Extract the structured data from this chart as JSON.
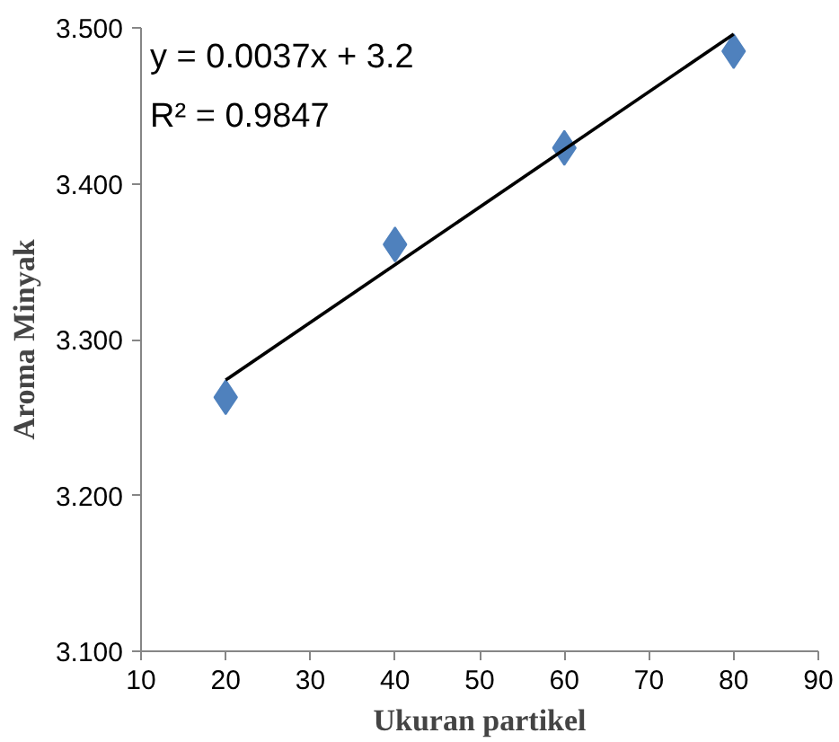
{
  "chart_data": {
    "type": "scatter",
    "xlabel": "Ukuran partikel",
    "ylabel": "Aroma Minyak",
    "x": [
      20,
      40,
      60,
      80
    ],
    "series": [
      {
        "type": "scatter",
        "color": "#4f81bd",
        "values": [
          3.263,
          3.361,
          3.423,
          3.485
        ],
        "marker": "diamond"
      },
      {
        "type": "line",
        "color": "#000000",
        "x": [
          20,
          80
        ],
        "values": [
          3.274,
          3.496
        ],
        "marker": "none"
      }
    ],
    "annotations": [
      "y = 0.0037x + 3.2",
      "R² = 0.9847"
    ],
    "xlim": [
      10,
      90
    ],
    "xticks": [
      10,
      20,
      30,
      40,
      50,
      60,
      70,
      80,
      90
    ],
    "ylim": [
      3.1,
      3.5
    ],
    "yticks": [
      {
        "value": 3.1,
        "label": "3.100"
      },
      {
        "value": 3.2,
        "label": "3.200"
      },
      {
        "value": 3.3,
        "label": "3.300"
      },
      {
        "value": 3.4,
        "label": "3.400"
      },
      {
        "value": 3.5,
        "label": "3.500"
      }
    ],
    "grid": false
  }
}
